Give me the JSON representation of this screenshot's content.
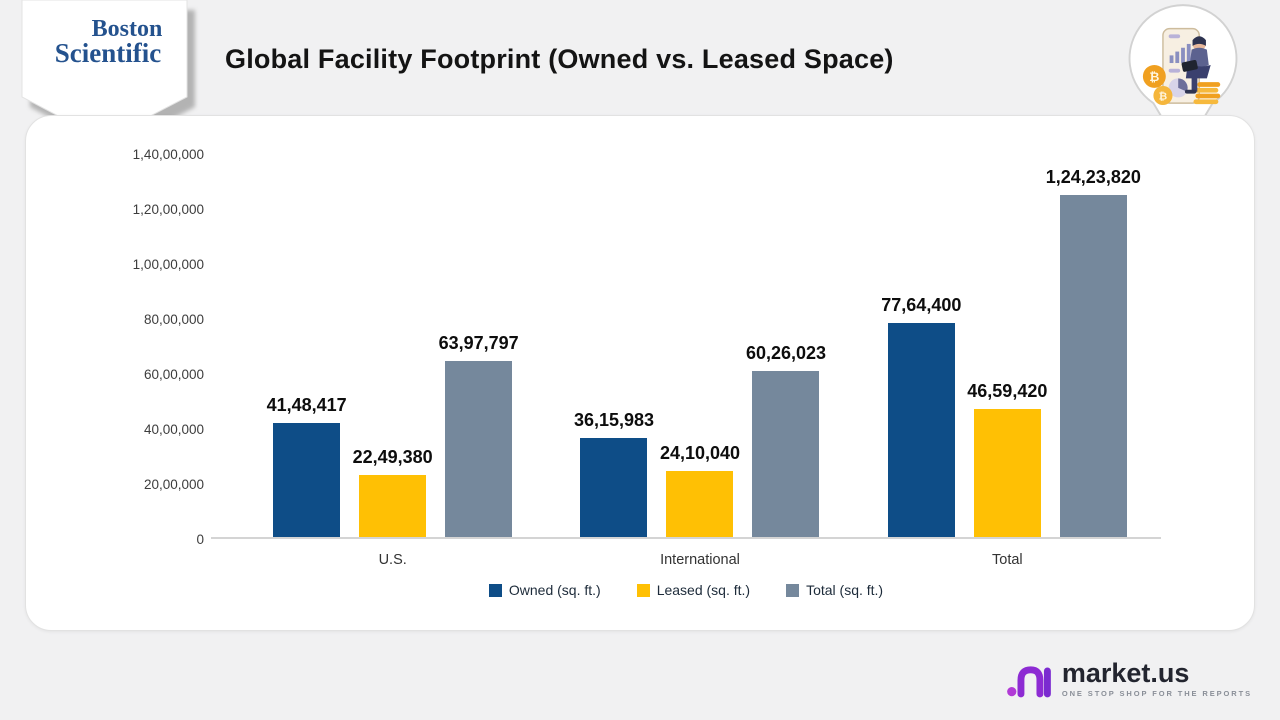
{
  "header": {
    "title": "Global Facility Footprint (Owned vs. Leased Space)",
    "brand": {
      "line1": "Boston",
      "line2": "Scientific"
    }
  },
  "theme": {
    "page_bg": "#f1f1f2",
    "card_bg": "#ffffff",
    "brand_blue": "#24528e",
    "marketus_purple": "#8d2bd3",
    "coin_orange": "#f0a020"
  },
  "chart_data": {
    "type": "bar",
    "title": "Global Facility Footprint (Owned vs. Leased Space)",
    "categories": [
      "U.S.",
      "International",
      "Total"
    ],
    "series": [
      {
        "name": "Owned (sq. ft.)",
        "color": "#0e4d87",
        "values": [
          4148417,
          3615983,
          7764400
        ],
        "labels": [
          "41,48,417",
          "36,15,983",
          "77,64,400"
        ]
      },
      {
        "name": "Leased (sq. ft.)",
        "color": "#ffc004",
        "values": [
          2249380,
          2410040,
          4659420
        ],
        "labels": [
          "22,49,380",
          "24,10,040",
          "46,59,420"
        ]
      },
      {
        "name": "Total (sq. ft.)",
        "color": "#75889c",
        "values": [
          6397797,
          6026023,
          12423820
        ],
        "labels": [
          "63,97,797",
          "60,26,023",
          "1,24,23,820"
        ]
      }
    ],
    "y_axis": {
      "min": 0,
      "max": 14000000,
      "tick_step": 2000000,
      "tick_labels": [
        "0",
        "20,00,000",
        "40,00,000",
        "60,00,000",
        "80,00,000",
        "1,00,00,000",
        "1,20,00,000",
        "1,40,00,000"
      ]
    },
    "legend_position": "bottom",
    "grid": false,
    "xlabel": "",
    "ylabel": ""
  },
  "footer": {
    "logo_text": "market.us",
    "tagline": "ONE STOP SHOP FOR THE REPORTS"
  }
}
